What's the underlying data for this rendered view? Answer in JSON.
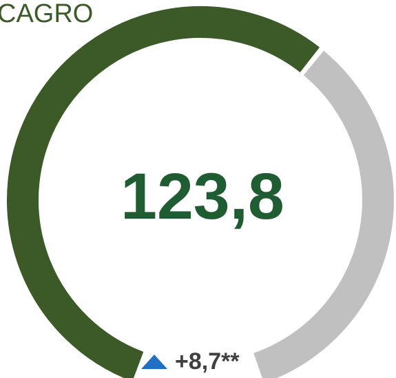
{
  "chart_data": {
    "type": "gauge",
    "title": "CAGRO",
    "value": 123.8,
    "value_label": "123,8",
    "ylim": [
      0,
      200
    ],
    "colors": [
      "#3b5a27",
      "#c0c0c0"
    ],
    "delta_label": "+8,7**"
  }
}
